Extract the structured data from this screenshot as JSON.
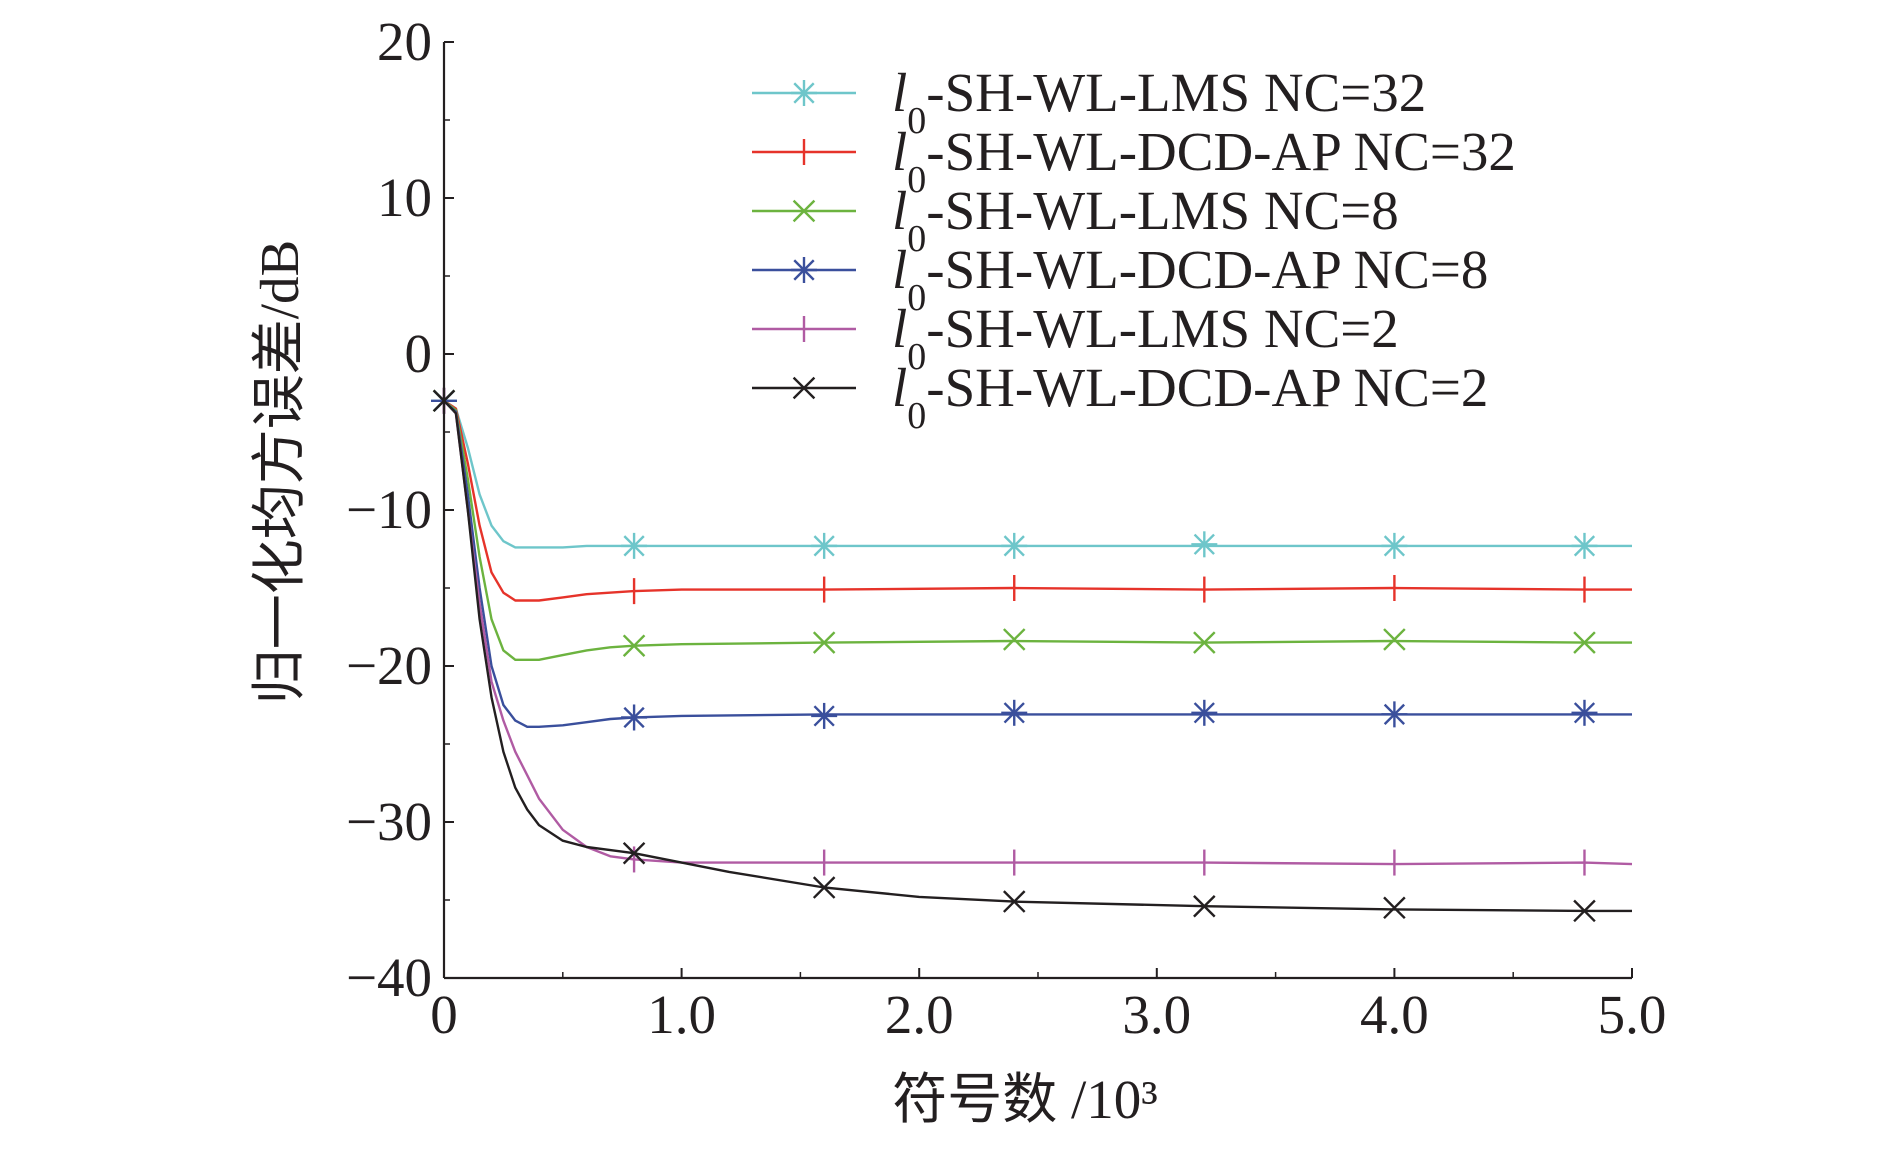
{
  "chart_data": {
    "type": "line",
    "title": "",
    "xlabel": "符号数 /10³",
    "ylabel": "归一化均方误差/dB",
    "xlim": [
      0,
      5.0
    ],
    "ylim": [
      -40,
      20
    ],
    "x_ticks": [
      "0",
      "1.0",
      "2.0",
      "3.0",
      "4.0",
      "5.0"
    ],
    "y_ticks": [
      "20",
      "10",
      "0",
      "−10",
      "−20",
      "−30",
      "−40"
    ],
    "legend_position": "top-right",
    "grid": false,
    "series": [
      {
        "name": "l0-SH-WL-LMS NC=32",
        "label_italic": "l",
        "label_sub": "0",
        "label_rest": "-SH-WL-LMS NC=32",
        "color": "#6ec6ca",
        "marker": "asterisk",
        "x": [
          0,
          0.05,
          0.1,
          0.15,
          0.2,
          0.25,
          0.3,
          0.4,
          0.5,
          0.6,
          0.8,
          1.0,
          1.6,
          2.4,
          3.2,
          4.0,
          4.8,
          5.0
        ],
        "y": [
          -3,
          -3.5,
          -6,
          -9,
          -11,
          -12,
          -12.4,
          -12.4,
          -12.4,
          -12.3,
          -12.3,
          -12.3,
          -12.3,
          -12.3,
          -12.3,
          -12.3,
          -12.3,
          -12.3
        ],
        "marker_x": [
          0.8,
          1.6,
          2.4,
          3.2,
          4.0,
          4.8
        ],
        "marker_y": [
          -12.3,
          -12.3,
          -12.3,
          -12.2,
          -12.3,
          -12.3
        ]
      },
      {
        "name": "l0-SH-WL-DCD-AP NC=32",
        "label_italic": "l",
        "label_sub": "0",
        "label_rest": "-SH-WL-DCD-AP NC=32",
        "color": "#e6332a",
        "marker": "tick",
        "x": [
          0,
          0.05,
          0.1,
          0.15,
          0.2,
          0.25,
          0.3,
          0.4,
          0.5,
          0.6,
          0.8,
          1.0,
          1.6,
          2.4,
          3.2,
          4.0,
          4.8,
          5.0
        ],
        "y": [
          -3,
          -3.5,
          -7,
          -11,
          -14,
          -15.3,
          -15.8,
          -15.8,
          -15.6,
          -15.4,
          -15.2,
          -15.1,
          -15.1,
          -15.0,
          -15.1,
          -15.0,
          -15.1,
          -15.1
        ],
        "marker_x": [
          0.8,
          1.6,
          2.4,
          3.2,
          4.0,
          4.8
        ],
        "marker_y": [
          -15.2,
          -15.1,
          -15.0,
          -15.1,
          -15.0,
          -15.1
        ]
      },
      {
        "name": "l0-SH-WL-LMS NC=8",
        "label_italic": "l",
        "label_sub": "0",
        "label_rest": "-SH-WL-LMS NC=8",
        "color": "#6cb33f",
        "marker": "x",
        "x": [
          0,
          0.05,
          0.1,
          0.15,
          0.2,
          0.25,
          0.3,
          0.4,
          0.5,
          0.6,
          0.7,
          0.8,
          1.0,
          1.6,
          2.4,
          3.2,
          4.0,
          4.8,
          5.0
        ],
        "y": [
          -3,
          -3.6,
          -8,
          -13,
          -17,
          -19,
          -19.6,
          -19.6,
          -19.3,
          -19.0,
          -18.8,
          -18.7,
          -18.6,
          -18.5,
          -18.4,
          -18.5,
          -18.4,
          -18.5,
          -18.5
        ],
        "marker_x": [
          0.8,
          1.6,
          2.4,
          3.2,
          4.0,
          4.8
        ],
        "marker_y": [
          -18.7,
          -18.5,
          -18.3,
          -18.5,
          -18.3,
          -18.5
        ]
      },
      {
        "name": "l0-SH-WL-DCD-AP NC=8",
        "label_italic": "l",
        "label_sub": "0",
        "label_rest": "-SH-WL-DCD-AP NC=8",
        "color": "#3a4f9c",
        "marker": "asterisk",
        "x": [
          0,
          0.05,
          0.1,
          0.15,
          0.2,
          0.25,
          0.3,
          0.35,
          0.4,
          0.5,
          0.6,
          0.7,
          0.8,
          1.0,
          1.6,
          2.4,
          3.2,
          4.0,
          4.8,
          5.0
        ],
        "y": [
          -3,
          -3.7,
          -9,
          -15,
          -20,
          -22.5,
          -23.5,
          -23.9,
          -23.9,
          -23.8,
          -23.6,
          -23.4,
          -23.3,
          -23.2,
          -23.1,
          -23.1,
          -23.1,
          -23.1,
          -23.1,
          -23.1
        ],
        "marker_x": [
          0.8,
          1.6,
          2.4,
          3.2,
          4.0,
          4.8
        ],
        "marker_y": [
          -23.3,
          -23.2,
          -23.0,
          -23.0,
          -23.1,
          -23.0
        ]
      },
      {
        "name": "l0-SH-WL-LMS NC=2",
        "label_italic": "l",
        "label_sub": "0",
        "label_rest": "-SH-WL-LMS NC=2",
        "color": "#b05ba3",
        "marker": "tick",
        "x": [
          0,
          0.05,
          0.1,
          0.15,
          0.2,
          0.25,
          0.3,
          0.35,
          0.4,
          0.5,
          0.6,
          0.7,
          0.8,
          1.0,
          1.6,
          2.4,
          3.2,
          4.0,
          4.8,
          5.0
        ],
        "y": [
          -3,
          -3.8,
          -10,
          -16,
          -21,
          -23.5,
          -25.5,
          -27,
          -28.5,
          -30.5,
          -31.6,
          -32.2,
          -32.4,
          -32.6,
          -32.6,
          -32.6,
          -32.6,
          -32.7,
          -32.6,
          -32.7
        ],
        "marker_x": [
          0.8,
          1.6,
          2.4,
          3.2,
          4.0,
          4.8
        ],
        "marker_y": [
          -32.4,
          -32.6,
          -32.6,
          -32.6,
          -32.6,
          -32.6
        ]
      },
      {
        "name": "l0-SH-WL-DCD-AP NC=2",
        "label_italic": "l",
        "label_sub": "0",
        "label_rest": "-SH-WL-DCD-AP NC=2",
        "color": "#231f20",
        "marker": "x",
        "x": [
          0,
          0.05,
          0.1,
          0.15,
          0.2,
          0.25,
          0.3,
          0.35,
          0.4,
          0.5,
          0.6,
          0.7,
          0.8,
          1.0,
          1.2,
          1.6,
          2.0,
          2.4,
          3.2,
          4.0,
          4.8,
          5.0
        ],
        "y": [
          -3,
          -3.8,
          -10,
          -17,
          -22,
          -25.5,
          -27.8,
          -29.2,
          -30.2,
          -31.2,
          -31.6,
          -31.8,
          -32.0,
          -32.6,
          -33.2,
          -34.2,
          -34.8,
          -35.1,
          -35.4,
          -35.6,
          -35.7,
          -35.7
        ],
        "marker_x": [
          0.8,
          1.6,
          2.4,
          3.2,
          4.0,
          4.8
        ],
        "marker_y": [
          -32.0,
          -34.2,
          -35.1,
          -35.4,
          -35.5,
          -35.7
        ]
      }
    ]
  }
}
